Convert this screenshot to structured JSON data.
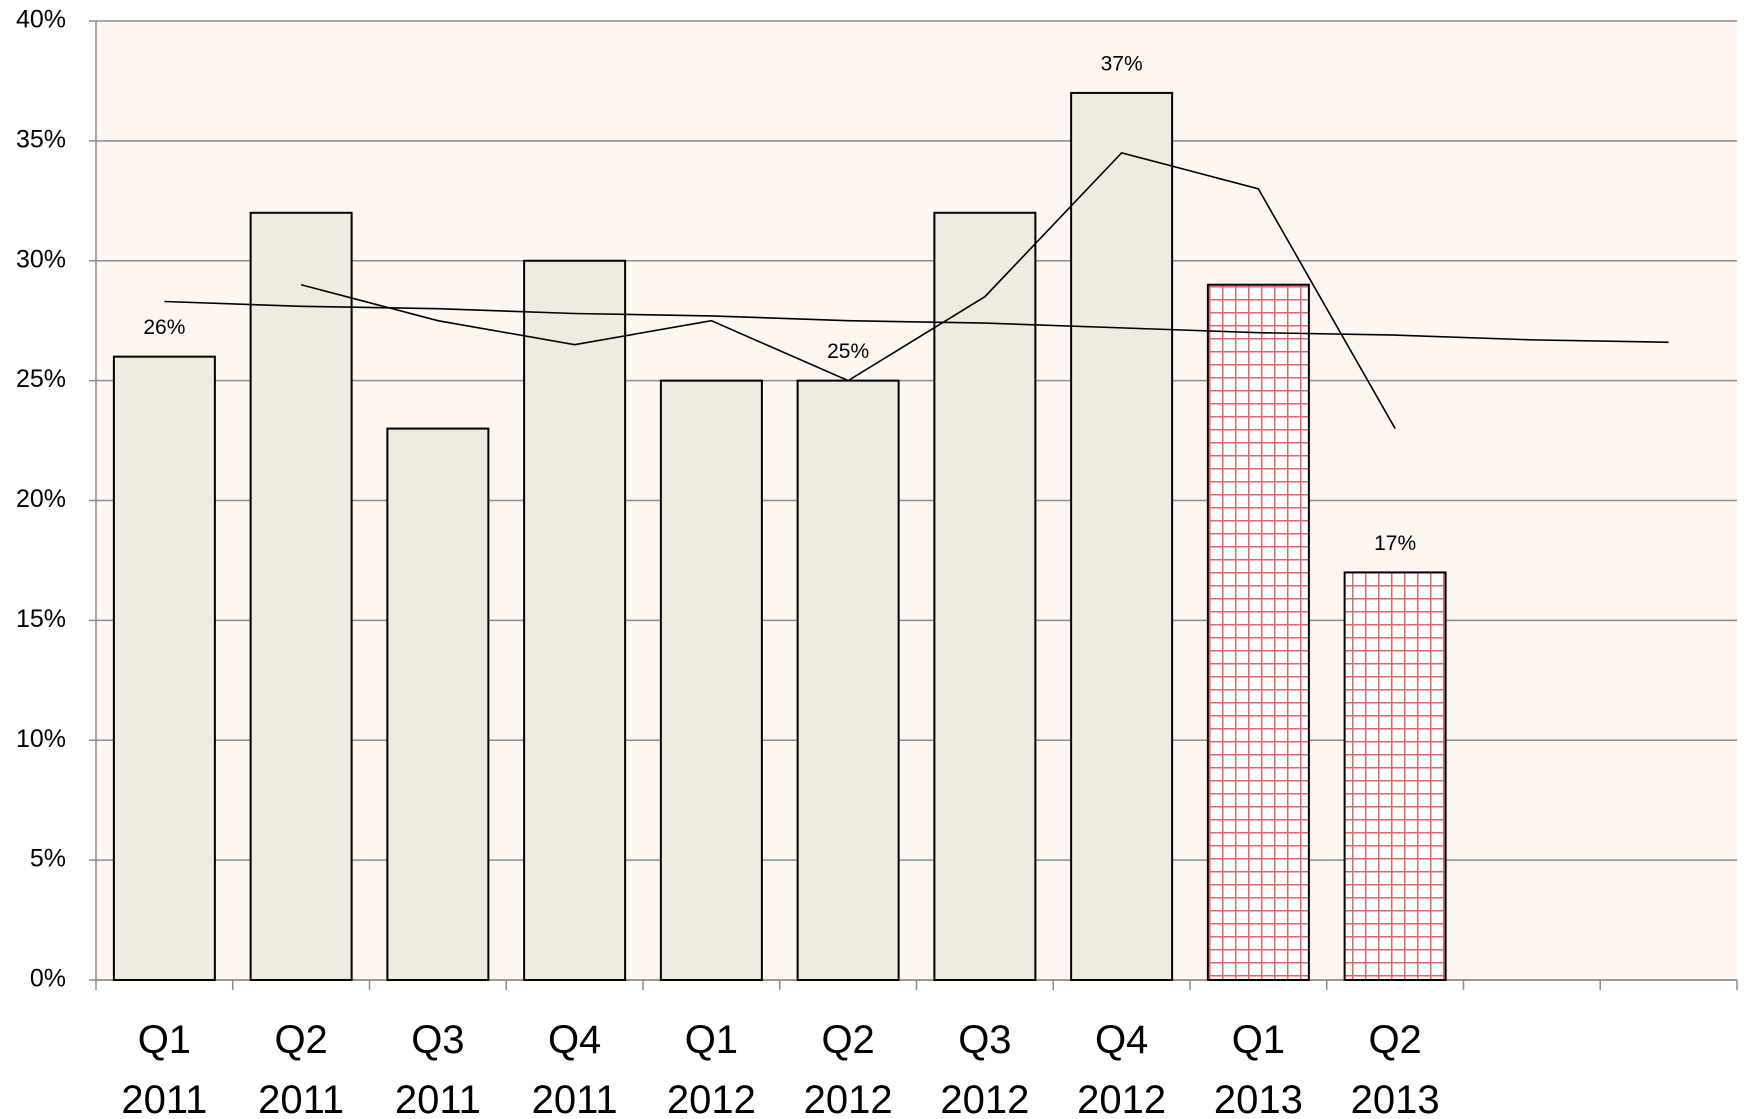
{
  "chart_data": {
    "type": "bar",
    "categories": [
      "Q1 2011",
      "Q2 2011",
      "Q3 2011",
      "Q4 2011",
      "Q1 2012",
      "Q2 2012",
      "Q3 2012",
      "Q4 2012",
      "Q1 2013",
      "Q2 2013",
      null,
      null
    ],
    "values": [
      26,
      32,
      23,
      30,
      25,
      25,
      32,
      37,
      29,
      17,
      null,
      null
    ],
    "value_labels": [
      "26%",
      null,
      null,
      null,
      null,
      "25%",
      null,
      "37%",
      null,
      "17%",
      null,
      null
    ],
    "colors": [
      "#eeebe0",
      "#eeebe0",
      "#eeebe0",
      "#eeebe0",
      "#eeebe0",
      "#eeebe0",
      "#eeebe0",
      "#eeebe0",
      "#e06666",
      "#e06666",
      null,
      null
    ],
    "pattern": [
      null,
      null,
      null,
      null,
      null,
      null,
      null,
      null,
      "grid",
      "grid",
      null,
      null
    ],
    "lines": [
      {
        "color": "#000000",
        "values": [
          null,
          29,
          27.5,
          26.5,
          27.5,
          25,
          28.5,
          34.5,
          33,
          23,
          null,
          null
        ]
      },
      {
        "color": "#000000",
        "values": [
          28.3,
          28.1,
          28.0,
          27.8,
          27.7,
          27.5,
          27.4,
          27.2,
          27.0,
          26.9,
          26.7,
          26.6
        ]
      }
    ],
    "ylim": [
      0,
      40
    ],
    "yticks": [
      {
        "value": 0,
        "label": "0%"
      },
      {
        "value": 5,
        "label": "5%"
      },
      {
        "value": 10,
        "label": "10%"
      },
      {
        "value": 15,
        "label": "15%"
      },
      {
        "value": 20,
        "label": "20%"
      },
      {
        "value": 25,
        "label": "25%"
      },
      {
        "value": 30,
        "label": "30%"
      },
      {
        "value": 35,
        "label": "35%"
      },
      {
        "value": 40,
        "label": "40%"
      }
    ],
    "grid": true,
    "background": "#fdf6f1"
  }
}
